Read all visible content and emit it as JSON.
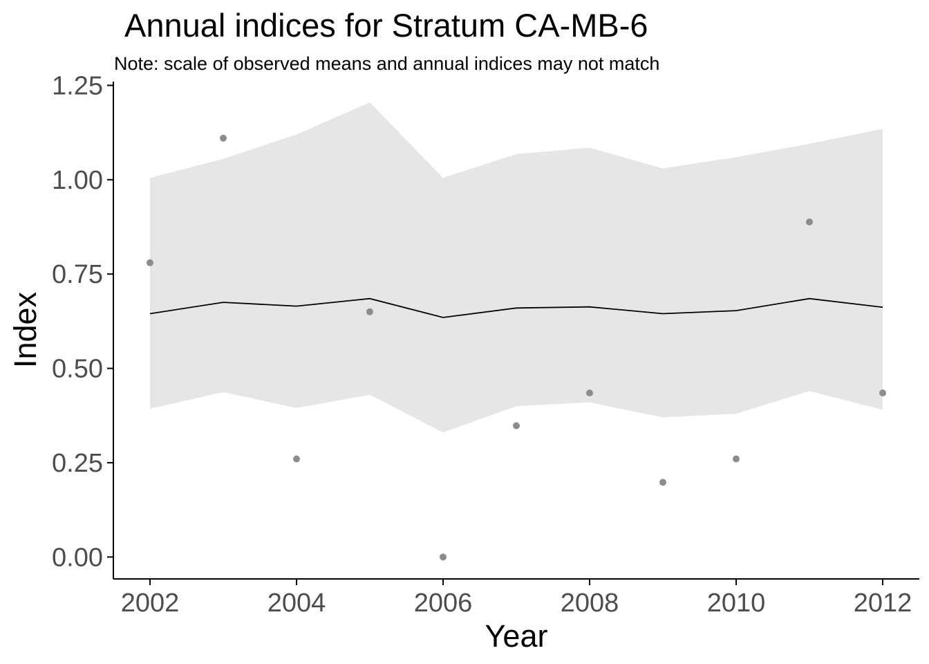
{
  "chart_data": {
    "type": "line",
    "title": "Annual indices for Stratum CA-MB-6",
    "subtitle": "Note: scale of observed means and annual indices may not match",
    "xlabel": "Year",
    "ylabel": "Index",
    "xlim": [
      2001.5,
      2012.5
    ],
    "ylim": [
      -0.058,
      1.26
    ],
    "x_ticks": [
      2002,
      2004,
      2006,
      2008,
      2010,
      2012
    ],
    "x_tick_labels": [
      "2002",
      "2004",
      "2006",
      "2008",
      "2010",
      "2012"
    ],
    "y_ticks": [
      0,
      0.25,
      0.5,
      0.75,
      1.0,
      1.25
    ],
    "y_tick_labels": [
      "0.00",
      "0.25",
      "0.50",
      "0.75",
      "1.00",
      "1.25"
    ],
    "grid": false,
    "legend": "none",
    "years": [
      2002,
      2003,
      2004,
      2005,
      2006,
      2007,
      2008,
      2009,
      2010,
      2011,
      2012
    ],
    "index": [
      0.645,
      0.675,
      0.665,
      0.685,
      0.635,
      0.66,
      0.663,
      0.645,
      0.653,
      0.685,
      0.662
    ],
    "lower": [
      0.393,
      0.437,
      0.395,
      0.43,
      0.33,
      0.4,
      0.41,
      0.37,
      0.38,
      0.44,
      0.39
    ],
    "upper": [
      1.005,
      1.055,
      1.12,
      1.205,
      1.005,
      1.068,
      1.085,
      1.03,
      1.06,
      1.095,
      1.135
    ],
    "observed_means": [
      0.78,
      1.11,
      0.26,
      0.65,
      0.0,
      0.348,
      0.435,
      0.198,
      0.26,
      0.888,
      0.435
    ],
    "colors": {
      "ribbon": "#e6e6e6",
      "line": "#000000",
      "points": "#8c8c8c",
      "axis": "#000000"
    }
  }
}
